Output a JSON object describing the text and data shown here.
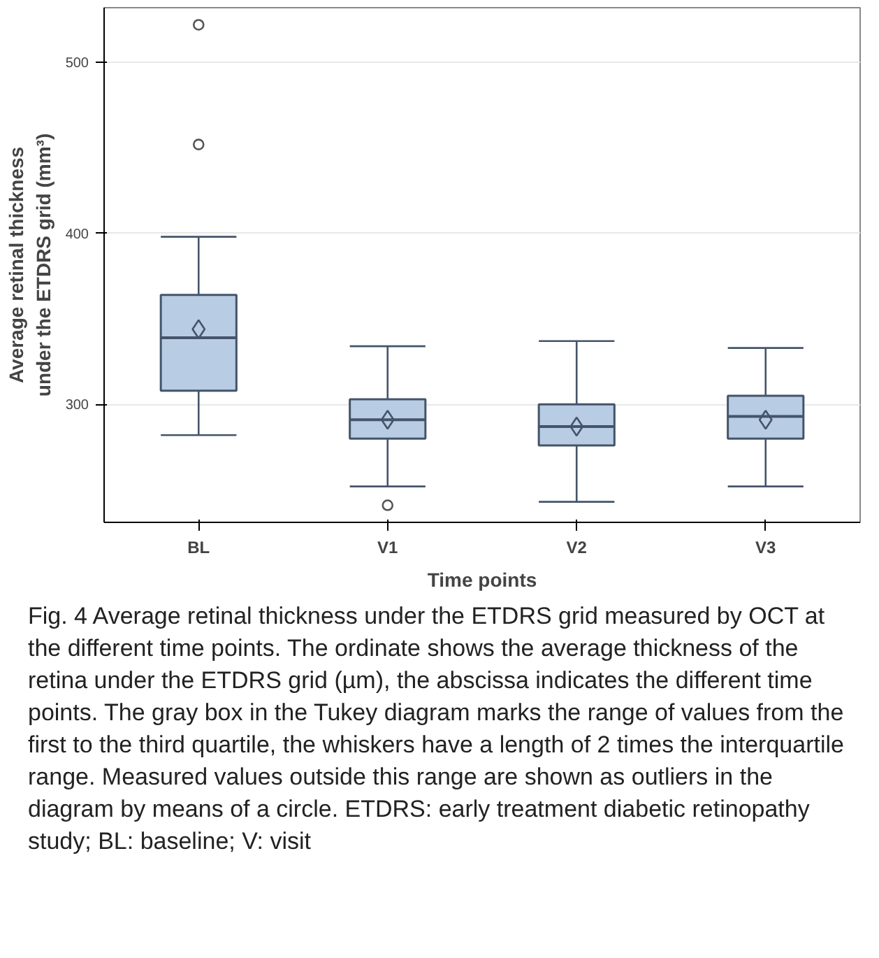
{
  "chart_data": {
    "type": "box",
    "xlabel": "Time points",
    "ylabel": "Average retinal thickness under the ETDRS grid (mm³)",
    "categories": [
      "BL",
      "V1",
      "V2",
      "V3"
    ],
    "boxes": [
      {
        "low": 282,
        "q1": 308,
        "median": 339,
        "q3": 364,
        "high": 398,
        "mean": 344,
        "outliers": [
          452,
          522
        ]
      },
      {
        "low": 252,
        "q1": 280,
        "median": 291,
        "q3": 303,
        "high": 334,
        "mean": 291,
        "outliers": [
          241
        ]
      },
      {
        "low": 243,
        "q1": 276,
        "median": 287,
        "q3": 300,
        "high": 337,
        "mean": 287
      },
      {
        "low": 252,
        "q1": 280,
        "median": 293,
        "q3": 305,
        "high": 333,
        "mean": 291
      }
    ],
    "color": "#b8cce4",
    "ylim": [
      231,
      532
    ],
    "yticks": [
      300,
      400,
      500
    ],
    "grid": "y",
    "annotations": [
      "Fig. 4 Average retinal thickness under the ETDRS grid measured by OCT at the different time points. The ordinate shows the average thickness of the retina under the ETDRS grid (µm), the abscissa indicates the different time points. The gray box in the Tukey diagram marks the range of values from the first to the third quartile, the whiskers have a length of 2 times the interquartile range. Measured values outside this range are shown as outliers in the diagram by means of a circle. ETDRS: early treatment diabetic retinopathy study; BL: baseline; V: visit"
    ]
  }
}
